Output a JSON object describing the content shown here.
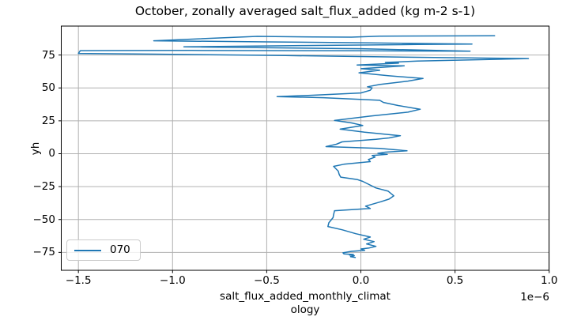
{
  "colors": {
    "line": "#1f77b4",
    "grid": "#b0b0b0",
    "spine": "#000000",
    "text": "#000000",
    "legend_border": "#cccccc",
    "background": "#ffffff"
  },
  "chart_data": {
    "type": "line",
    "title": "October, zonally averaged salt_flux_added (kg m-2 s-1)",
    "xlabel": "salt_flux_added_monthly_climatology",
    "xlabel_lines": [
      "salt_flux_added_monthly_climat",
      "ology"
    ],
    "ylabel": "yh",
    "offset_text": "1e−6",
    "x_unit_multiplier": "1e-6",
    "grid": true,
    "xlim": [
      -1.591,
      0.999
    ],
    "ylim": [
      -88.6,
      97.0
    ],
    "x_ticks": {
      "values": [
        -1.5,
        -1.0,
        -0.5,
        0.0,
        0.5,
        1.0
      ],
      "labels": [
        "−1.5",
        "−1.0",
        "−0.5",
        "0.0",
        "0.5",
        "1.0"
      ]
    },
    "y_ticks": {
      "values": [
        75,
        50,
        25,
        0,
        -25,
        -50,
        -75
      ],
      "labels": [
        "75",
        "50",
        "25",
        "0",
        "−25",
        "−50",
        "−75"
      ]
    },
    "legend": {
      "label": "070",
      "position": "lower left"
    },
    "series": [
      {
        "name": "070",
        "color": "#1f77b4",
        "x_values_times_1e6_vs_yh": true,
        "points": [
          [
            -0.03,
            -78.8
          ],
          [
            -0.055,
            -78.2
          ],
          [
            -0.035,
            -77.5
          ],
          [
            -0.06,
            -77.0
          ],
          [
            -0.04,
            -76.6
          ],
          [
            -0.09,
            -76.1
          ],
          [
            -0.095,
            -75.3
          ],
          [
            -0.05,
            -74.2
          ],
          [
            0.02,
            -73.4
          ],
          [
            0.0,
            -72.4
          ],
          [
            0.045,
            -71.6
          ],
          [
            0.08,
            -70.4
          ],
          [
            0.03,
            -68.6
          ],
          [
            0.07,
            -66.8
          ],
          [
            0.015,
            -65.0
          ],
          [
            0.05,
            -63.3
          ],
          [
            -0.027,
            -60.8
          ],
          [
            -0.1,
            -57.8
          ],
          [
            -0.175,
            -55.3
          ],
          [
            -0.17,
            -52.5
          ],
          [
            -0.148,
            -48.6
          ],
          [
            -0.145,
            -46.3
          ],
          [
            -0.14,
            -43.3
          ],
          [
            0.05,
            -41.6
          ],
          [
            0.025,
            -39.8
          ],
          [
            0.105,
            -36.5
          ],
          [
            0.15,
            -34.5
          ],
          [
            0.175,
            -32.0
          ],
          [
            0.145,
            -28.5
          ],
          [
            0.08,
            -26.0
          ],
          [
            0.01,
            -21.0
          ],
          [
            -0.02,
            -19.6
          ],
          [
            -0.107,
            -17.8
          ],
          [
            -0.115,
            -15.8
          ],
          [
            -0.12,
            -13.2
          ],
          [
            -0.145,
            -9.6
          ],
          [
            -0.09,
            -8.0
          ],
          [
            0.05,
            -6.0
          ],
          [
            0.04,
            -4.4
          ],
          [
            0.075,
            -2.6
          ],
          [
            0.06,
            -1.4
          ],
          [
            0.14,
            -0.5
          ],
          [
            0.09,
            0.3
          ],
          [
            0.13,
            1.2
          ],
          [
            0.245,
            2.2
          ],
          [
            0.1,
            4.0
          ],
          [
            -0.185,
            5.4
          ],
          [
            -0.13,
            7.2
          ],
          [
            -0.1,
            9.0
          ],
          [
            0.08,
            11.0
          ],
          [
            0.15,
            12.0
          ],
          [
            0.21,
            13.7
          ],
          [
            0.02,
            16.4
          ],
          [
            -0.11,
            18.7
          ],
          [
            0.01,
            21.5
          ],
          [
            -0.05,
            23.4
          ],
          [
            -0.14,
            25.3
          ],
          [
            0.05,
            28.6
          ],
          [
            0.25,
            31.6
          ],
          [
            0.315,
            33.8
          ],
          [
            0.2,
            36.6
          ],
          [
            0.12,
            39.0
          ],
          [
            0.1,
            40.6
          ],
          [
            -0.2,
            42.6
          ],
          [
            -0.445,
            43.4
          ],
          [
            -0.28,
            44.3
          ],
          [
            0.0,
            46.2
          ],
          [
            0.05,
            48.2
          ],
          [
            0.06,
            50.0
          ],
          [
            0.035,
            50.9
          ],
          [
            0.1,
            52.6
          ],
          [
            0.25,
            55.2
          ],
          [
            0.33,
            57.2
          ],
          [
            0.15,
            59.2
          ],
          [
            -0.01,
            61.5
          ],
          [
            0.1,
            63.4
          ],
          [
            0.0,
            64.6
          ],
          [
            0.23,
            66.8
          ],
          [
            -0.02,
            67.4
          ],
          [
            0.2,
            68.8
          ],
          [
            0.13,
            69.4
          ],
          [
            0.3,
            70.4
          ],
          [
            0.89,
            72.3
          ],
          [
            0.3,
            73.3
          ],
          [
            -0.4,
            74.6
          ],
          [
            -1.1,
            75.7
          ],
          [
            -1.5,
            76.2
          ],
          [
            -1.49,
            78.3
          ],
          [
            -0.9,
            78.5
          ],
          [
            0.0,
            78.2
          ],
          [
            0.58,
            77.9
          ],
          [
            0.0,
            79.8
          ],
          [
            -0.94,
            81.2
          ],
          [
            -0.3,
            82.2
          ],
          [
            0.3,
            83.0
          ],
          [
            0.59,
            83.3
          ],
          [
            0.0,
            84.3
          ],
          [
            -0.5,
            85.0
          ],
          [
            -1.1,
            85.8
          ],
          [
            -0.55,
            89.2
          ],
          [
            -0.25,
            88.7
          ],
          [
            -0.05,
            88.6
          ],
          [
            0.1,
            89.4
          ],
          [
            0.71,
            89.6
          ]
        ]
      }
    ]
  }
}
